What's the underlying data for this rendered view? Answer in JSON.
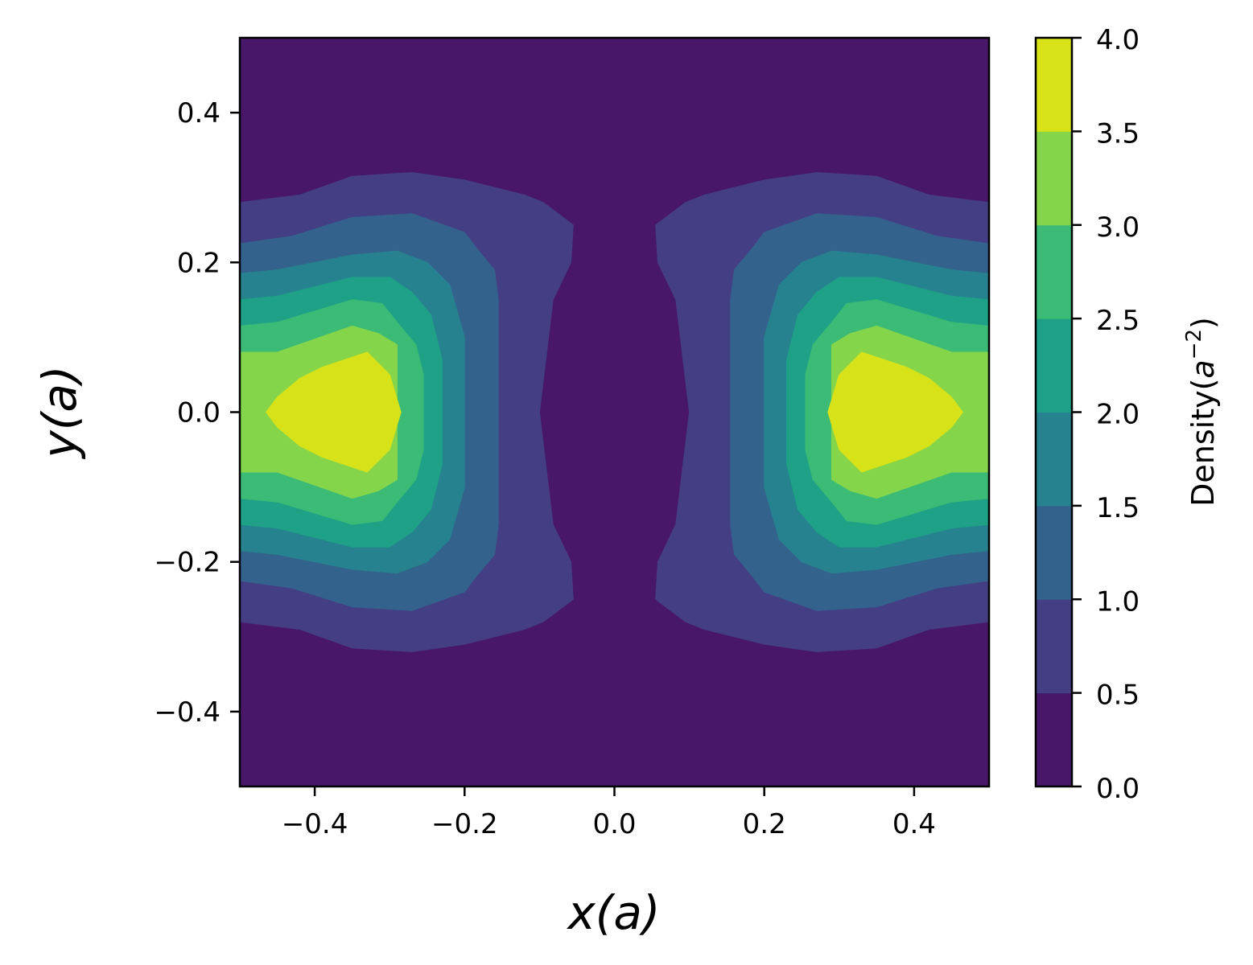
{
  "chart_data": {
    "type": "contourf",
    "xlabel": "x(a)",
    "ylabel": "y(a)",
    "xlim": [
      -0.5,
      0.5
    ],
    "ylim": [
      -0.5,
      0.5
    ],
    "xticks": [
      "−0.4",
      "−0.2",
      "0.0",
      "0.2",
      "0.4"
    ],
    "xtick_values": [
      -0.4,
      -0.2,
      0.0,
      0.2,
      0.4
    ],
    "yticks": [
      "−0.4",
      "−0.2",
      "0.0",
      "0.2",
      "0.4"
    ],
    "ytick_values": [
      -0.4,
      -0.2,
      0.0,
      0.2,
      0.4
    ],
    "colorbar": {
      "label": "Density(a⁻²)",
      "label_main": "Density(",
      "label_a": "a",
      "label_exp": "−2",
      "label_close": ")",
      "levels": [
        0.0,
        0.5,
        1.0,
        1.5,
        2.0,
        2.5,
        3.0,
        3.5,
        4.0
      ],
      "tick_labels": [
        "0.0",
        "0.5",
        "1.0",
        "1.5",
        "2.0",
        "2.5",
        "3.0",
        "3.5",
        "4.0"
      ],
      "colors": [
        "#481769",
        "#443f84",
        "#33638d",
        "#26828e",
        "#1fa187",
        "#3bbb75",
        "#85d54a",
        "#d7e219"
      ]
    },
    "peaks": [
      {
        "x": -0.37,
        "y": 0.0,
        "density_range": [
          3.5,
          4.0
        ]
      },
      {
        "x": 0.37,
        "y": 0.0,
        "density_range": [
          3.5,
          4.0
        ]
      }
    ],
    "bands": [
      {
        "level": [
          0.5,
          1.0
        ],
        "left_boundary": [
          [
            -0.5,
            0.28
          ],
          [
            -0.42,
            0.29
          ],
          [
            -0.35,
            0.315
          ],
          [
            -0.27,
            0.32
          ],
          [
            -0.2,
            0.31
          ],
          [
            -0.12,
            0.29
          ],
          [
            -0.095,
            0.28
          ],
          [
            -0.055,
            0.25
          ],
          [
            -0.058,
            0.2
          ],
          [
            -0.082,
            0.15
          ],
          [
            -0.1,
            0.0
          ],
          [
            -0.082,
            -0.15
          ],
          [
            -0.058,
            -0.2
          ],
          [
            -0.055,
            -0.25
          ],
          [
            -0.095,
            -0.28
          ],
          [
            -0.12,
            -0.29
          ],
          [
            -0.2,
            -0.31
          ],
          [
            -0.27,
            -0.32
          ],
          [
            -0.35,
            -0.315
          ],
          [
            -0.42,
            -0.29
          ],
          [
            -0.5,
            -0.28
          ]
        ]
      },
      {
        "level": [
          1.0,
          1.5
        ],
        "left_boundary": [
          [
            -0.5,
            0.225
          ],
          [
            -0.43,
            0.235
          ],
          [
            -0.35,
            0.26
          ],
          [
            -0.27,
            0.265
          ],
          [
            -0.2,
            0.24
          ],
          [
            -0.185,
            0.22
          ],
          [
            -0.16,
            0.19
          ],
          [
            -0.155,
            0.15
          ],
          [
            -0.155,
            0.0
          ],
          [
            -0.155,
            -0.15
          ],
          [
            -0.16,
            -0.19
          ],
          [
            -0.185,
            -0.22
          ],
          [
            -0.2,
            -0.24
          ],
          [
            -0.27,
            -0.265
          ],
          [
            -0.35,
            -0.26
          ],
          [
            -0.43,
            -0.235
          ],
          [
            -0.5,
            -0.225
          ]
        ]
      },
      {
        "level": [
          1.5,
          2.0
        ],
        "left_boundary": [
          [
            -0.5,
            0.185
          ],
          [
            -0.45,
            0.19
          ],
          [
            -0.35,
            0.21
          ],
          [
            -0.29,
            0.215
          ],
          [
            -0.25,
            0.2
          ],
          [
            -0.22,
            0.17
          ],
          [
            -0.2,
            0.1
          ],
          [
            -0.2,
            0.0
          ],
          [
            -0.2,
            -0.1
          ],
          [
            -0.22,
            -0.17
          ],
          [
            -0.25,
            -0.2
          ],
          [
            -0.29,
            -0.215
          ],
          [
            -0.35,
            -0.21
          ],
          [
            -0.45,
            -0.19
          ],
          [
            -0.5,
            -0.185
          ]
        ]
      },
      {
        "level": [
          2.0,
          2.5
        ],
        "left_boundary": [
          [
            -0.5,
            0.15
          ],
          [
            -0.45,
            0.155
          ],
          [
            -0.35,
            0.18
          ],
          [
            -0.3,
            0.18
          ],
          [
            -0.27,
            0.16
          ],
          [
            -0.245,
            0.13
          ],
          [
            -0.23,
            0.07
          ],
          [
            -0.23,
            0.0
          ],
          [
            -0.23,
            -0.07
          ],
          [
            -0.245,
            -0.13
          ],
          [
            -0.27,
            -0.16
          ],
          [
            -0.3,
            -0.18
          ],
          [
            -0.35,
            -0.18
          ],
          [
            -0.45,
            -0.155
          ],
          [
            -0.5,
            -0.15
          ]
        ]
      },
      {
        "level": [
          2.5,
          3.0
        ],
        "left_boundary": [
          [
            -0.5,
            0.115
          ],
          [
            -0.45,
            0.12
          ],
          [
            -0.35,
            0.15
          ],
          [
            -0.31,
            0.145
          ],
          [
            -0.29,
            0.12
          ],
          [
            -0.265,
            0.09
          ],
          [
            -0.255,
            0.05
          ],
          [
            -0.255,
            0.0
          ],
          [
            -0.255,
            -0.05
          ],
          [
            -0.265,
            -0.09
          ],
          [
            -0.29,
            -0.12
          ],
          [
            -0.31,
            -0.145
          ],
          [
            -0.35,
            -0.15
          ],
          [
            -0.45,
            -0.12
          ],
          [
            -0.5,
            -0.115
          ]
        ]
      },
      {
        "level": [
          3.0,
          3.5
        ],
        "left_boundary": [
          [
            -0.5,
            0.08
          ],
          [
            -0.45,
            0.08
          ],
          [
            -0.35,
            0.115
          ],
          [
            -0.315,
            0.105
          ],
          [
            -0.29,
            0.09
          ],
          [
            -0.29,
            0.0
          ],
          [
            -0.29,
            -0.09
          ],
          [
            -0.315,
            -0.105
          ],
          [
            -0.35,
            -0.115
          ],
          [
            -0.45,
            -0.08
          ],
          [
            -0.5,
            -0.08
          ]
        ]
      },
      {
        "level": [
          3.5,
          4.0
        ],
        "left_boundary": [
          [
            -0.465,
            0.0
          ],
          [
            -0.45,
            0.02
          ],
          [
            -0.42,
            0.045
          ],
          [
            -0.39,
            0.06
          ],
          [
            -0.33,
            0.08
          ],
          [
            -0.3,
            0.05
          ],
          [
            -0.285,
            0.0
          ],
          [
            -0.3,
            -0.05
          ],
          [
            -0.33,
            -0.08
          ],
          [
            -0.39,
            -0.06
          ],
          [
            -0.42,
            -0.045
          ],
          [
            -0.45,
            -0.02
          ],
          [
            -0.465,
            0.0
          ]
        ],
        "closed": true
      }
    ]
  }
}
